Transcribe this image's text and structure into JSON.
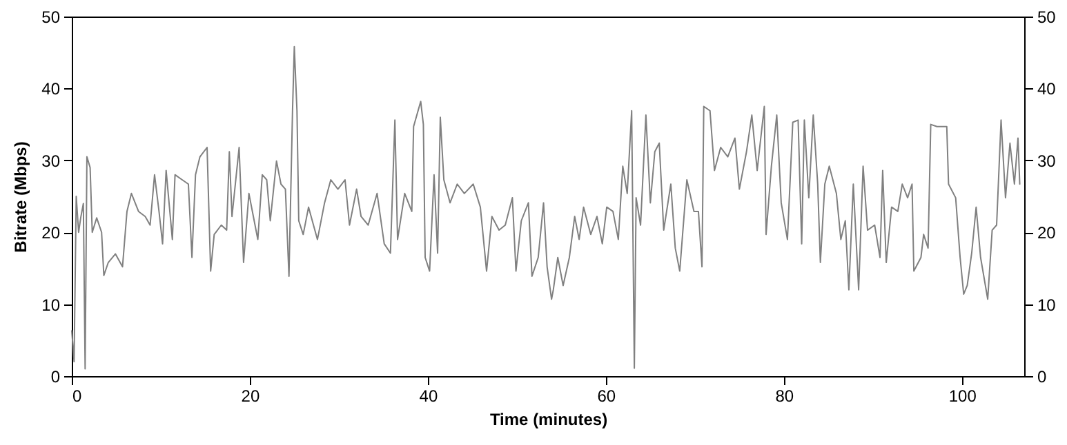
{
  "chart_data": {
    "type": "line",
    "xlabel": "Time (minutes)",
    "ylabel": "Bitrate (Mbps)",
    "xlim": [
      0,
      107
    ],
    "xticks": [
      0,
      20,
      40,
      60,
      80,
      100
    ],
    "ylim": [
      0,
      50
    ],
    "yticks": [
      0,
      10,
      20,
      30,
      40,
      50
    ],
    "y2lim": [
      0,
      50
    ],
    "y2ticks": [
      0,
      10,
      20,
      30,
      40,
      50
    ],
    "grid": false,
    "marker": "none",
    "line_style": "solid",
    "series": [
      {
        "color": "#808080",
        "x": [
          0,
          0.26,
          0.5,
          0.77,
          1.0,
          1.3,
          1.5,
          1.7,
          2.06,
          2.3,
          2.8,
          3.35,
          3.6,
          4.1,
          4.9,
          5.7,
          6.2,
          6.7,
          7.5,
          8.25,
          8.8,
          9.3,
          9.8,
          10.2,
          10.6,
          11.3,
          11.6,
          12.4,
          13.1,
          13.5,
          13.9,
          14.4,
          15.2,
          15.6,
          16.0,
          16.8,
          17.4,
          17.7,
          18.0,
          18.8,
          19.3,
          19.9,
          20.4,
          20.9,
          21.4,
          21.9,
          22.3,
          23.0,
          23.5,
          24.0,
          24.4,
          24.8,
          25.0,
          25.3,
          25.5,
          26.0,
          26.6,
          27.6,
          28.4,
          29.1,
          29.9,
          30.7,
          31.2,
          32.0,
          32.5,
          33.3,
          34.3,
          35.1,
          35.8,
          36.3,
          36.6,
          37.4,
          38.2,
          38.4,
          39.2,
          39.5,
          39.7,
          40.2,
          40.7,
          41.1,
          41.4,
          41.8,
          42.5,
          43.3,
          44.1,
          45.1,
          45.9,
          46.6,
          47.2,
          48.0,
          48.7,
          49.5,
          49.9,
          50.5,
          51.3,
          51.7,
          52.4,
          53.0,
          53.4,
          53.9,
          54.1,
          54.6,
          55.2,
          55.9,
          56.5,
          57.0,
          57.5,
          58.3,
          59.0,
          59.6,
          60.1,
          60.8,
          61.4,
          61.9,
          62.4,
          62.9,
          63.2,
          63.4,
          63.9,
          64.5,
          65.0,
          65.5,
          66.0,
          66.5,
          67.3,
          67.8,
          68.3,
          69.1,
          69.9,
          70.4,
          70.8,
          71.0,
          71.7,
          72.2,
          72.9,
          73.7,
          74.5,
          75.0,
          75.8,
          76.4,
          77.0,
          77.8,
          78.0,
          78.6,
          79.2,
          79.7,
          80.4,
          81.0,
          81.6,
          82.0,
          82.3,
          82.8,
          83.3,
          83.8,
          84.1,
          84.6,
          85.1,
          85.9,
          86.4,
          86.9,
          87.3,
          87.8,
          88.4,
          88.9,
          89.4,
          90.2,
          90.8,
          91.1,
          91.5,
          92.1,
          92.8,
          93.3,
          93.9,
          94.4,
          94.6,
          95.4,
          95.7,
          96.2,
          96.5,
          97.2,
          98.3,
          98.5,
          99.3,
          99.8,
          100.2,
          100.6,
          101.1,
          101.6,
          102.1,
          102.9,
          103.4,
          103.9,
          104.4,
          104.9,
          105.4,
          105.9,
          106.3,
          106.5
        ],
        "values": [
          6.3,
          2,
          25,
          20,
          22,
          24,
          1,
          30.5,
          29,
          20,
          22,
          20,
          14,
          15.8,
          17,
          15.2,
          22.9,
          25.4,
          22.9,
          22.2,
          21,
          28,
          22.9,
          18.4,
          28.6,
          19,
          28,
          27.3,
          26.7,
          16.5,
          28,
          30.5,
          31.8,
          14.6,
          19.7,
          21,
          20.3,
          31.2,
          22.2,
          31.8,
          15.8,
          25.4,
          22.2,
          19,
          28,
          27.3,
          21.6,
          29.9,
          26.7,
          26,
          13.9,
          36.9,
          45.8,
          36.9,
          21.6,
          19.7,
          23.5,
          19,
          24.1,
          27.3,
          26,
          27.3,
          21,
          26,
          22.2,
          21,
          25.4,
          18.4,
          17.1,
          35.6,
          19,
          25.4,
          22.9,
          34.7,
          38.2,
          35,
          16.5,
          14.6,
          28,
          17.1,
          36,
          27.3,
          24.1,
          26.7,
          25.4,
          26.7,
          23.5,
          14.6,
          22.2,
          20.3,
          21,
          24.8,
          14.6,
          21.6,
          24.1,
          13.9,
          16.5,
          24.1,
          15.2,
          10.7,
          12,
          16.5,
          12.6,
          16.5,
          22.2,
          19,
          23.5,
          19.7,
          22.2,
          18.4,
          23.5,
          22.9,
          19,
          29.2,
          25.4,
          36.9,
          1.1,
          24.8,
          21,
          36.3,
          24.1,
          31.2,
          32.4,
          20.3,
          26.7,
          17.8,
          14.6,
          27.3,
          22.9,
          22.9,
          15.2,
          37.5,
          36.9,
          28.6,
          31.8,
          30.5,
          33.1,
          26,
          31.2,
          36.3,
          28.6,
          37.5,
          19.7,
          29.2,
          36.3,
          24.1,
          19,
          35.3,
          35.6,
          18.4,
          35.6,
          24.8,
          36.3,
          26.7,
          15.8,
          26.7,
          29.2,
          25.4,
          19,
          21.6,
          12,
          26.7,
          12,
          29.2,
          20.3,
          21,
          16.5,
          28.6,
          15.8,
          23.5,
          22.9,
          26.7,
          24.8,
          26.7,
          14.6,
          16.5,
          19.7,
          17.8,
          35,
          34.7,
          34.7,
          26.7,
          24.8,
          16.5,
          11.4,
          12.6,
          17.1,
          23.5,
          16.5,
          10.7,
          20.3,
          21,
          35.6,
          24.8,
          32.4,
          26.7,
          33.1,
          26.7
        ]
      }
    ]
  }
}
